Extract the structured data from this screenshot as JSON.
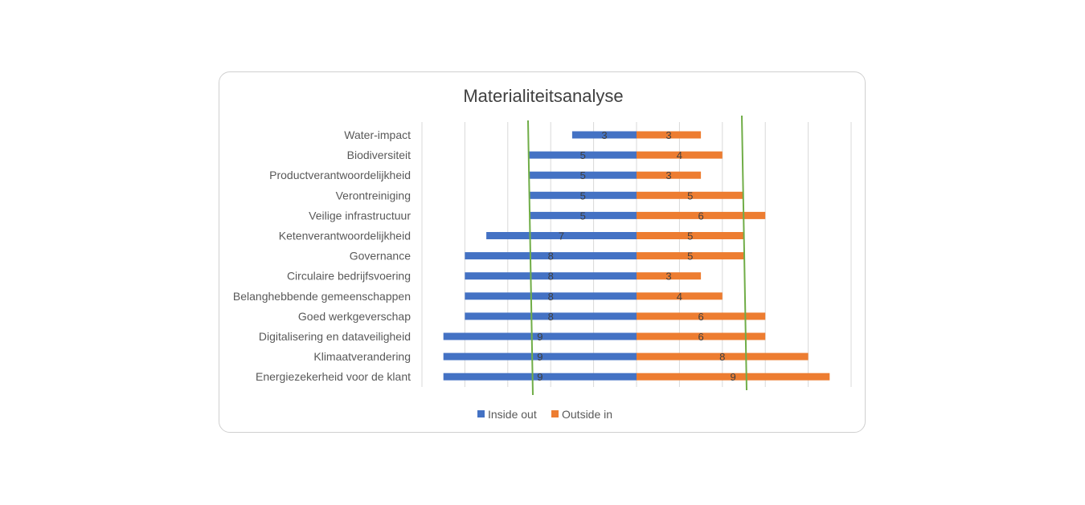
{
  "chart_data": {
    "type": "bar",
    "orientation": "horizontal-diverging",
    "title": "Materialiteitsanalyse",
    "categories": [
      "Water-impact",
      "Biodiversiteit",
      "Productverantwoordelijkheid",
      "Verontreiniging",
      "Veilige infrastructuur",
      "Ketenverantwoordelijkheid",
      "Governance",
      "Circulaire bedrijfsvoering",
      "Belanghebbende gemeenschappen",
      "Goed werkgeverschap",
      "Digitalisering en dataveiligheid",
      "Klimaatverandering",
      "Energiezekerheid voor de klant"
    ],
    "series": [
      {
        "name": "Inside out",
        "color": "#4472C4",
        "values": [
          3,
          5,
          5,
          5,
          5,
          7,
          8,
          8,
          8,
          8,
          9,
          9,
          9
        ]
      },
      {
        "name": "Outside in",
        "color": "#ED7D31",
        "values": [
          3,
          4,
          3,
          5,
          6,
          5,
          5,
          3,
          4,
          6,
          6,
          8,
          9
        ]
      }
    ],
    "xlim": [
      -10,
      10
    ],
    "grid": true,
    "legend": "bottom",
    "threshold_line_color": "#70AD47"
  }
}
